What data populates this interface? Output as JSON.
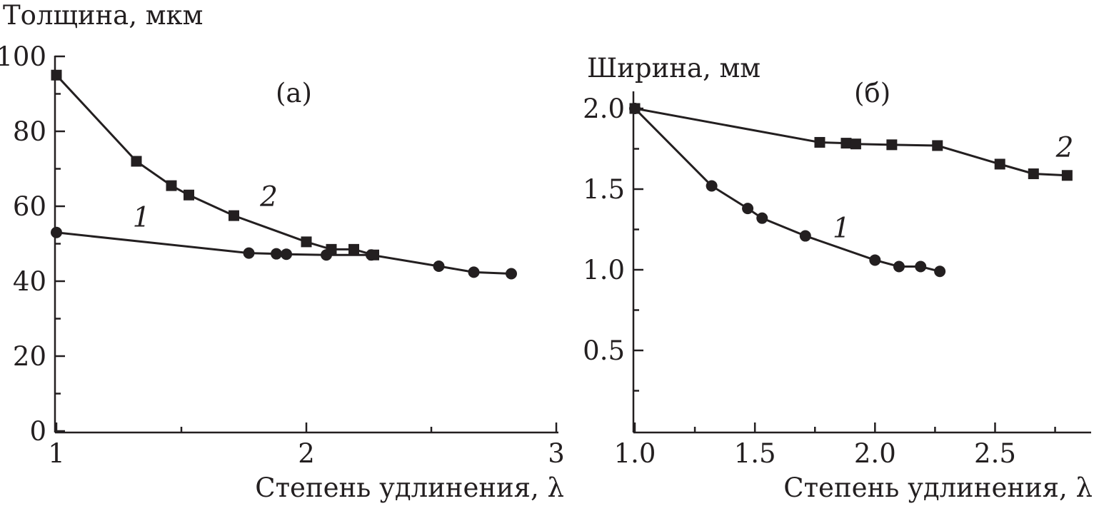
{
  "chart_data": [
    {
      "type": "line",
      "panel_label": "(а)",
      "ylabel": "Толщина, мкм",
      "xlabel": "Степень удлинения, λ",
      "xlim": [
        1,
        3
      ],
      "ylim": [
        0,
        100
      ],
      "x_ticks": [
        1,
        2,
        3
      ],
      "x_tick_labels": [
        "1",
        "2",
        "3"
      ],
      "x_minor_ticks": [
        1.5,
        2.5
      ],
      "y_ticks": [
        0,
        20,
        40,
        60,
        80,
        100
      ],
      "y_tick_labels": [
        "0",
        "20",
        "40",
        "60",
        "80",
        "100"
      ],
      "grid": false,
      "series": [
        {
          "name": "1",
          "marker": "circle",
          "x": [
            1.0,
            1.77,
            1.88,
            1.92,
            2.08,
            2.26,
            2.53,
            2.67,
            2.82
          ],
          "y": [
            53,
            47.5,
            47.3,
            47.2,
            47.0,
            47.0,
            44.0,
            42.4,
            42.0
          ],
          "label_at": [
            1.34,
            54.5
          ]
        },
        {
          "name": "2",
          "marker": "square",
          "x": [
            1.0,
            1.32,
            1.46,
            1.53,
            1.71,
            2.0,
            2.1,
            2.19,
            2.27
          ],
          "y": [
            95,
            72,
            65.5,
            63,
            57.5,
            50.5,
            48.5,
            48.5,
            47.0
          ],
          "label_at": [
            1.85,
            60
          ]
        }
      ]
    },
    {
      "type": "line",
      "panel_label": "(б)",
      "ylabel": "Ширина, мм",
      "xlabel": "Степень удлинения, λ",
      "xlim": [
        1.0,
        2.9
      ],
      "ylim": [
        0,
        2.1
      ],
      "x_ticks": [
        1.0,
        1.5,
        2.0,
        2.5
      ],
      "x_tick_labels": [
        "1.0",
        "1.5",
        "2.0",
        "2.5"
      ],
      "x_minor_ticks": [
        1.25,
        1.75,
        2.25,
        2.75
      ],
      "y_ticks": [
        0.5,
        1.0,
        1.5,
        2.0
      ],
      "y_tick_labels": [
        "0.5",
        "1.0",
        "1.5",
        "2.0"
      ],
      "y_minor_ticks": [
        0.25,
        0.75,
        1.25,
        1.75
      ],
      "grid": false,
      "series": [
        {
          "name": "1",
          "marker": "circle",
          "x": [
            1.0,
            1.32,
            1.47,
            1.53,
            1.71,
            2.0,
            2.1,
            2.19,
            2.27
          ],
          "y": [
            2.0,
            1.52,
            1.38,
            1.32,
            1.21,
            1.06,
            1.02,
            1.02,
            0.99
          ],
          "label_at": [
            1.86,
            1.2
          ]
        },
        {
          "name": "2",
          "marker": "square",
          "x": [
            1.0,
            1.77,
            1.88,
            1.92,
            2.07,
            2.26,
            2.52,
            2.66,
            2.8
          ],
          "y": [
            2.0,
            1.79,
            1.785,
            1.78,
            1.775,
            1.77,
            1.655,
            1.595,
            1.585
          ],
          "label_at": [
            2.79,
            1.7
          ]
        }
      ]
    }
  ]
}
